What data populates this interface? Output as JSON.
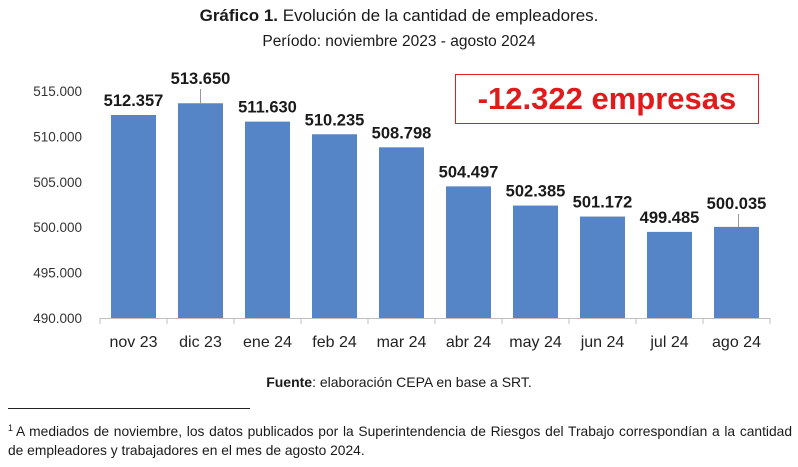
{
  "header": {
    "title_bold": "Gráfico 1.",
    "title_rest": " Evolución de la cantidad de empleadores.",
    "subtitle": "Período: noviembre 2023 - agosto 2024"
  },
  "callout": {
    "text": "-12.322 empresas",
    "color": "#e01b1b"
  },
  "source": {
    "label": "Fuente",
    "text": ": elaboración CEPA en base a SRT."
  },
  "footnote": {
    "marker": "1",
    "text": "A mediados de noviembre, los datos publicados por la Superintendencia de Riesgos del Trabajo correspondían a la cantidad de empleadores y trabajadores en el mes de agosto 2024."
  },
  "chart_data": {
    "type": "bar",
    "categories": [
      "nov 23",
      "dic 23",
      "ene 24",
      "feb 24",
      "mar 24",
      "abr 24",
      "may 24",
      "jun 24",
      "jul 24",
      "ago 24"
    ],
    "values": [
      512357,
      513650,
      511630,
      510235,
      508798,
      504497,
      502385,
      501172,
      499485,
      500035
    ],
    "value_labels": [
      "512.357",
      "513.650",
      "511.630",
      "510.235",
      "508.798",
      "504.497",
      "502.385",
      "501.172",
      "499.485",
      "500.035"
    ],
    "ylim": [
      490000,
      515000
    ],
    "yticks": [
      490000,
      495000,
      500000,
      505000,
      510000,
      515000
    ],
    "ytick_labels": [
      "490.000",
      "495.000",
      "500.000",
      "505.000",
      "510.000",
      "515.000"
    ],
    "bar_color": "#5585c6",
    "grid": false,
    "legend": "none",
    "title": "Gráfico 1. Evolución de la cantidad de empleadores.",
    "subtitle": "Período: noviembre 2023 - agosto 2024",
    "xlabel": "",
    "ylabel": ""
  }
}
